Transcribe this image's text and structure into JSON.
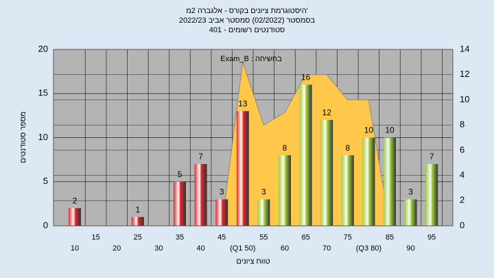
{
  "chart_data": {
    "type": "bar",
    "title": [
      "היסטוגרמת ציונים בקורס - אלגברה 2מ'",
      "בסמסטר  (02/2022)  סמסטר אביב 2022/23",
      "סטודנטים רשומים - 401"
    ],
    "x_label": "טווח ציונים",
    "y_label": "מספר סטודנטים",
    "annotation": "Exam_B : בחשיחה",
    "categories": [
      "10",
      "15",
      "20",
      "25",
      "30",
      "35",
      "40",
      "45",
      "(Q1 50)",
      "55",
      "60",
      "65",
      "70",
      "75",
      "(Q3 80)",
      "85",
      "90",
      "95"
    ],
    "series": [
      {
        "type": "bar",
        "values": [
          2,
          null,
          null,
          1,
          null,
          5,
          7,
          3,
          13,
          3,
          8,
          16,
          12,
          8,
          10,
          10,
          3,
          7
        ],
        "colors": [
          "#e0262c",
          null,
          null,
          "#e0262c",
          null,
          "#e0262c",
          "#e0262c",
          "#e0262c",
          "#e0262c",
          "#9ccc3c",
          "#9ccc3c",
          "#9ccc3c",
          "#9ccc3c",
          "#9ccc3c",
          "#9ccc3c",
          "#9ccc3c",
          "#9ccc3c",
          "#9ccc3c"
        ]
      },
      {
        "type": "area",
        "axis": "y2",
        "color": "#ffc84a",
        "values": [
          null,
          null,
          null,
          null,
          null,
          null,
          null,
          0,
          13,
          8,
          9,
          12,
          12,
          10,
          10,
          0,
          null,
          null
        ]
      }
    ],
    "ylim": [
      0,
      20
    ],
    "yticks": [
      0,
      5,
      10,
      15,
      20
    ],
    "y2lim": [
      0,
      14
    ],
    "y2ticks": [
      0,
      2,
      4,
      6,
      8,
      10,
      12,
      14
    ],
    "grid": true
  }
}
